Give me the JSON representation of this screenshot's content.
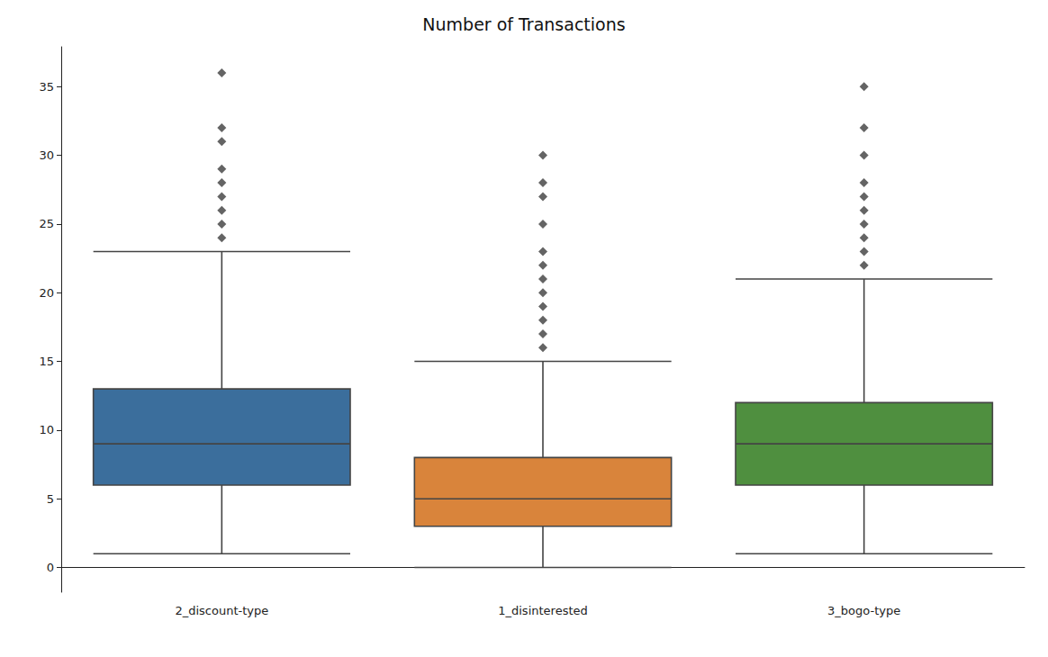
{
  "chart_data": {
    "type": "boxplot",
    "title": "Number of Transactions",
    "categories": [
      "2_discount-type",
      "1_disinterested",
      "3_bogo-type"
    ],
    "values": [
      [
        1,
        6,
        9,
        13,
        23
      ],
      [
        0,
        3,
        5,
        8,
        15
      ],
      [
        1,
        6,
        9,
        12,
        21
      ]
    ],
    "outliers": [
      [
        24,
        25,
        26,
        27,
        28,
        29,
        31,
        32,
        36
      ],
      [
        16,
        17,
        18,
        19,
        20,
        21,
        22,
        23,
        25,
        27,
        28,
        30
      ],
      [
        22,
        23,
        24,
        25,
        26,
        27,
        28,
        30,
        32,
        35
      ]
    ],
    "colors": [
      "#3b6e9c",
      "#d9843b",
      "#4f8f3f"
    ],
    "marker": "diamond",
    "ylim": [
      -1.8,
      37.9
    ],
    "yticks": [
      0,
      5,
      10,
      15,
      20,
      25,
      30,
      35
    ],
    "grid": false
  }
}
